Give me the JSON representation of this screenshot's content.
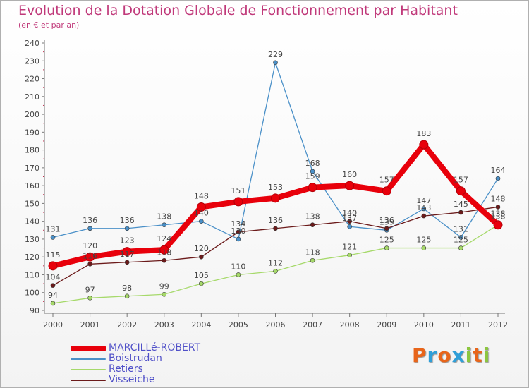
{
  "title": "Evolution de la Dotation Globale de Fonctionnement par Habitant",
  "subtitle": "(en € et par an)",
  "logo": {
    "text": "Proxiti",
    "letters": [
      "P",
      "r",
      "o",
      "x",
      "i",
      "t",
      "i"
    ],
    "colors": [
      "#e8651a",
      "#2f9fd8",
      "#e8651a",
      "#2f9fd8",
      "#8cc63f",
      "#e8651a",
      "#8cc63f"
    ]
  },
  "chart_data": {
    "type": "line",
    "title": "Evolution de la Dotation Globale de Fonctionnement par Habitant",
    "subtitle": "(en € et par an)",
    "xlabel": "",
    "ylabel": "",
    "x": [
      "2000",
      "2001",
      "2002",
      "2003",
      "2004",
      "2005",
      "2006",
      "2007",
      "2008",
      "2009",
      "2010",
      "2011",
      "2012"
    ],
    "ylim": [
      90,
      240
    ],
    "yticks": [
      "90",
      "100",
      "110",
      "120",
      "130",
      "140",
      "150",
      "160",
      "170",
      "180",
      "190",
      "200",
      "210",
      "220",
      "230",
      "240"
    ],
    "grid": false,
    "legend": "bottom-left",
    "series": [
      {
        "name": "MARCILLé-ROBERT",
        "color": "#e8000b",
        "values": [
          115,
          120,
          123,
          124,
          148,
          151,
          153,
          159,
          160,
          157,
          183,
          157,
          138
        ],
        "labels": [
          "115",
          "120",
          "123",
          "124",
          "148",
          "151",
          "153",
          "159",
          "160",
          "157",
          "183",
          "157",
          "138"
        ]
      },
      {
        "name": "Boistrudan",
        "color": "#4a90c8",
        "values": [
          131,
          136,
          136,
          138,
          140,
          130,
          229,
          168,
          137,
          135,
          147,
          131,
          164
        ],
        "labels": [
          "131",
          "136",
          "136",
          "138",
          "140",
          "130",
          "229",
          "168",
          "137",
          "135",
          "147",
          "131",
          "164"
        ]
      },
      {
        "name": "Retiers",
        "color": "#a6d96a",
        "values": [
          94,
          97,
          98,
          99,
          105,
          110,
          112,
          118,
          121,
          125,
          125,
          125,
          138
        ],
        "labels": [
          "94",
          "97",
          "98",
          "99",
          "105",
          "110",
          "112",
          "118",
          "121",
          "125",
          "125",
          "125",
          "138"
        ]
      },
      {
        "name": "Visseiche",
        "color": "#6b1a1a",
        "values": [
          104,
          116,
          117,
          118,
          120,
          134,
          136,
          138,
          140,
          136,
          143,
          145,
          148
        ],
        "labels": [
          "104",
          "116",
          "117",
          "118",
          "120",
          "134",
          "136",
          "138",
          "140",
          "136",
          "143",
          "145",
          "148"
        ]
      }
    ]
  }
}
